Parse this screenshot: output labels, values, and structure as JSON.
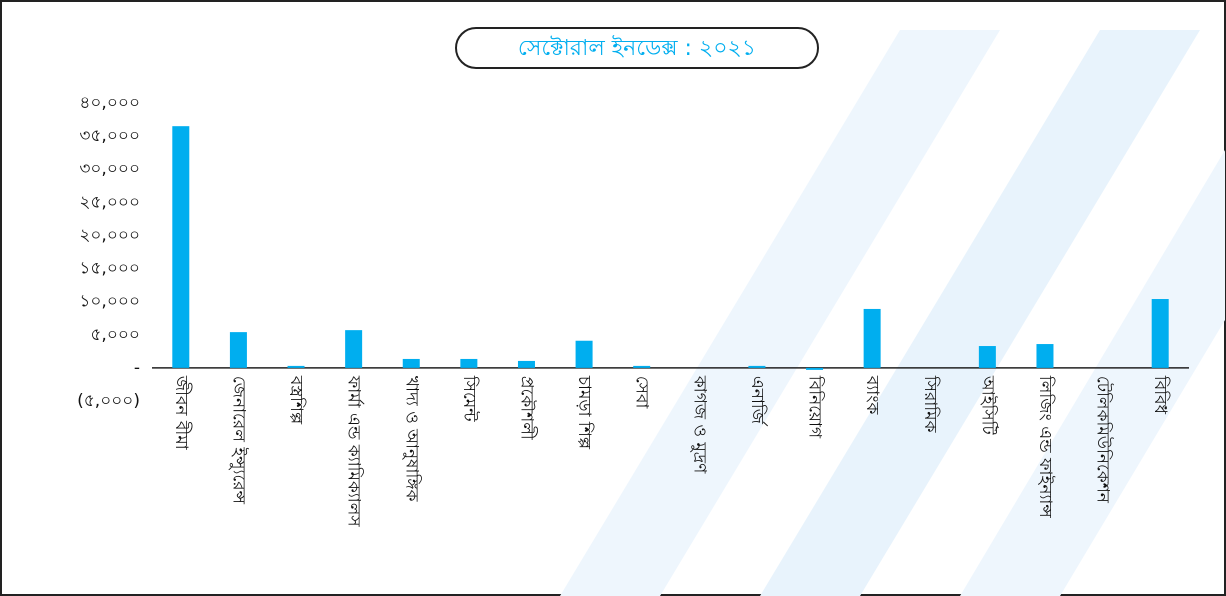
{
  "chart_data": {
    "type": "bar",
    "title": "সেক্টোরাল ইনডেক্স : ২০২১",
    "categories": [
      "জীবন বীমা",
      "জেনারেল ইন্স্যুরেন্স",
      "বস্ত্রশিল্প",
      "ফার্মা এন্ড ক্যামিক্যালস",
      "খাদ্য ও আনুষাঙ্গিক",
      "সিমেন্ট",
      "প্রকৌশলী",
      "চামড়া শিল্প",
      "সেবা",
      "কাগজ ও মুদ্রণ",
      "এনার্জি",
      "বিনিয়োগ",
      "ব্যাংক",
      "সিরামিক",
      "আইসিটি",
      "লিজিং এন্ড ফাইন্যান্স",
      "টেলিকমিউনিকেশন",
      "বিবিধ"
    ],
    "values": [
      36500,
      5400,
      300,
      5700,
      1350,
      1350,
      1050,
      4100,
      300,
      0,
      300,
      -300,
      8900,
      0,
      3300,
      3600,
      0,
      10400
    ],
    "color": "#00aeef",
    "ylim": [
      -5000,
      40000
    ],
    "yticks": [
      {
        "value": 40000,
        "label": "৪০,০০০"
      },
      {
        "value": 35000,
        "label": "৩৫,০০০"
      },
      {
        "value": 30000,
        "label": "৩০,০০০"
      },
      {
        "value": 25000,
        "label": "২৫,০০০"
      },
      {
        "value": 20000,
        "label": "২০,০০০"
      },
      {
        "value": 15000,
        "label": "১৫,০০০"
      },
      {
        "value": 10000,
        "label": "১০,০০০"
      },
      {
        "value": 5000,
        "label": "৫,০০০"
      },
      {
        "value": 0,
        "label": "-"
      },
      {
        "value": -5000,
        "label": "(৫,০০০)"
      }
    ],
    "grid": false
  }
}
